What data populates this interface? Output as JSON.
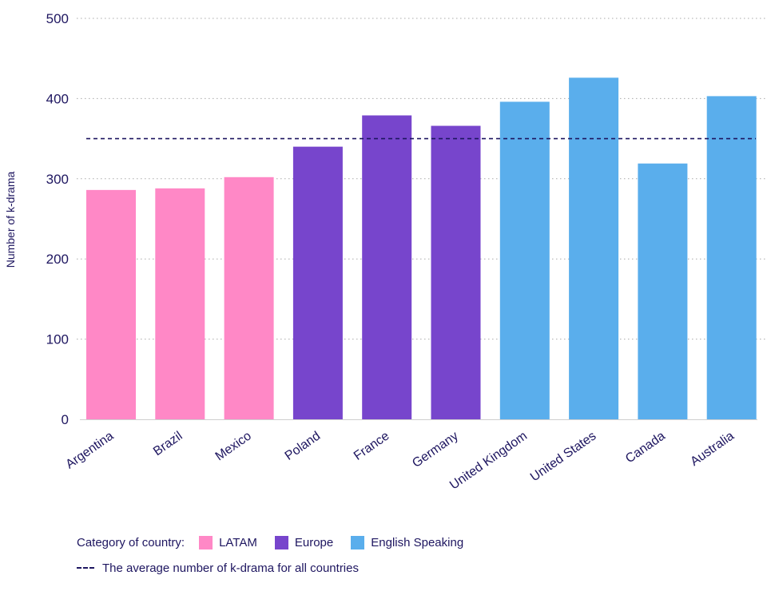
{
  "chart_data": {
    "type": "bar",
    "categories": [
      "Argentina",
      "Brazil",
      "Mexico",
      "Poland",
      "France",
      "Germany",
      "United Kingdom",
      "United States",
      "Canada",
      "Australia"
    ],
    "values": [
      286,
      288,
      302,
      340,
      379,
      366,
      396,
      426,
      319,
      403
    ],
    "category_groups": [
      "LATAM",
      "LATAM",
      "LATAM",
      "Europe",
      "Europe",
      "Europe",
      "English Speaking",
      "English Speaking",
      "English Speaking",
      "English Speaking"
    ],
    "ylabel": "Number of k-drama",
    "xlabel": "",
    "ylim": [
      0,
      500
    ],
    "yticks": [
      0,
      100,
      200,
      300,
      400,
      500
    ],
    "grid": "horizontal dotted",
    "reference_line": {
      "value": 350,
      "style": "dashed",
      "label": "The average number of k-drama for all countries"
    },
    "legend": {
      "title": "Category of country:",
      "placement": "bottom-left",
      "items": [
        {
          "name": "LATAM",
          "color": "#ff88c6"
        },
        {
          "name": "Europe",
          "color": "#7745cc"
        },
        {
          "name": "English Speaking",
          "color": "#5aaeec"
        }
      ]
    },
    "colors": {
      "text": "#1e1660",
      "grid": "#a9a9a9",
      "reference_line": "#1e1660"
    }
  }
}
